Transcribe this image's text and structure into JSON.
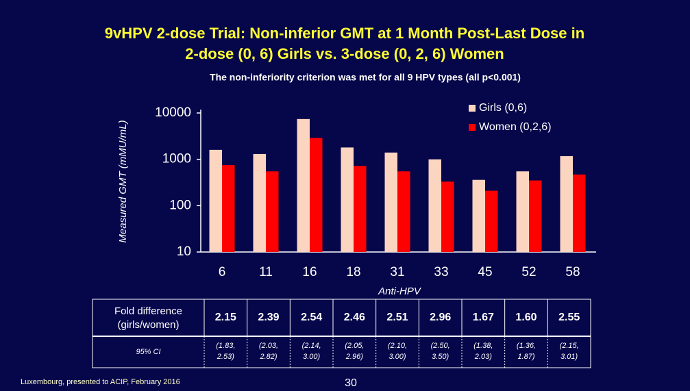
{
  "chart_data": {
    "type": "bar",
    "title": [
      "9vHPV 2-dose Trial: Non-inferior GMT at 1 Month Post-Last Dose in",
      "2-dose (0, 6) Girls vs. 3-dose (0, 2, 6) Women"
    ],
    "subtitle": "The non-inferiority  criterion  was met for all 9 HPV types (all p<0.001)",
    "x_label": "Anti-HPV",
    "y_label": "Measured GMT (mMU/mL)",
    "categories": [
      "6",
      "11",
      "16",
      "18",
      "31",
      "33",
      "45",
      "52",
      "58"
    ],
    "series": [
      {
        "name": "Girls (0,6)",
        "color": "#fcd5c0",
        "values": [
          1600,
          1300,
          7400,
          1800,
          1400,
          1000,
          360,
          550,
          1170
        ]
      },
      {
        "name": "Women (0,2,6)",
        "color": "#ff0000",
        "values": [
          750,
          550,
          2900,
          720,
          550,
          330,
          210,
          350,
          470
        ]
      }
    ],
    "ylim": [
      10,
      10000
    ],
    "yticks": [
      10,
      100,
      1000,
      10000
    ],
    "log_scale": true,
    "grid": false,
    "legend": "top-right"
  },
  "table": {
    "row_labels": [
      [
        "Fold difference",
        "(girls/women)"
      ],
      "95% CI"
    ],
    "fold_difference": [
      "2.15",
      "2.39",
      "2.54",
      "2.46",
      "2.51",
      "2.96",
      "1.67",
      "1.60",
      "2.55"
    ],
    "ci": [
      [
        "(1.83,",
        "2.53)"
      ],
      [
        "(2.03,",
        "2.82)"
      ],
      [
        "(2.14,",
        "3.00)"
      ],
      [
        "(2.05,",
        "2.96)"
      ],
      [
        "(2.10,",
        "3.00)"
      ],
      [
        "(2.50,",
        "3.50)"
      ],
      [
        "(1.38,",
        "2.03)"
      ],
      [
        "(1.36,",
        "1.87)"
      ],
      [
        "(2.15,",
        "3.01)"
      ]
    ]
  },
  "footer": "Luxembourg, presented to ACIP, February 2016",
  "page_number": "30"
}
